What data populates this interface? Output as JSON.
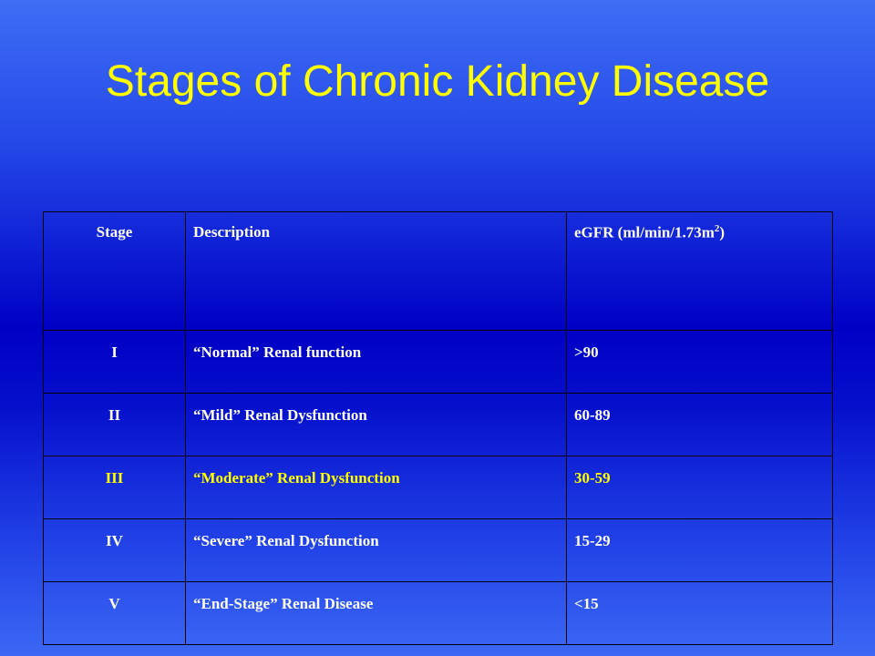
{
  "slide": {
    "title": "Stages of Chronic Kidney Disease"
  },
  "table": {
    "headers": {
      "stage": "Stage",
      "description": "Description",
      "egfr_prefix": "eGFR (ml/min/1.73m",
      "egfr_superscript": "2",
      "egfr_suffix": ")"
    },
    "rows": [
      {
        "stage": "I",
        "description": "“Normal” Renal function",
        "egfr": ">90"
      },
      {
        "stage": "II",
        "description": "“Mild” Renal Dysfunction",
        "egfr": "60-89"
      },
      {
        "stage": "III",
        "description": "“Moderate” Renal Dysfunction",
        "egfr": "30-59"
      },
      {
        "stage": "IV",
        "description": "“Severe” Renal Dysfunction",
        "egfr": "15-29"
      },
      {
        "stage": "V",
        "description": "“End-Stage” Renal Disease",
        "egfr": "<15"
      }
    ]
  },
  "colors": {
    "title": "#ffff00",
    "text": "#ffffff",
    "highlight_row_text": "#ffff00",
    "background": "#0000c4"
  }
}
